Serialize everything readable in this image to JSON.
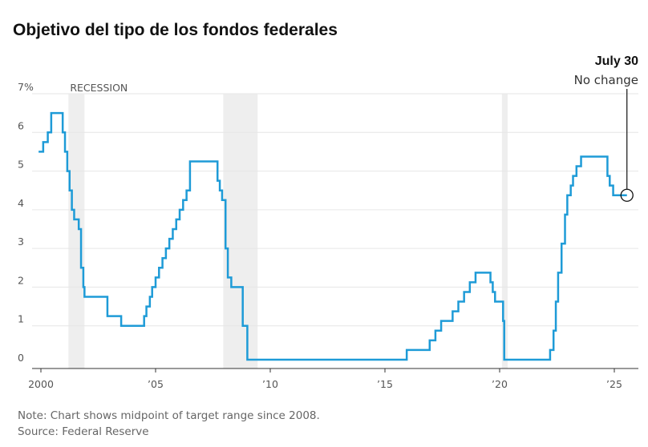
{
  "chart_data": {
    "type": "line",
    "title": "Objetivo del tipo de los fondos federales",
    "xlabel": "",
    "ylabel": "",
    "ylim": [
      0,
      7
    ],
    "xlim": [
      1999.9,
      2025.8
    ],
    "y_ticks": [
      {
        "value": 0,
        "label": "0"
      },
      {
        "value": 1,
        "label": "1"
      },
      {
        "value": 2,
        "label": "2"
      },
      {
        "value": 3,
        "label": "3"
      },
      {
        "value": 4,
        "label": "4"
      },
      {
        "value": 5,
        "label": "5"
      },
      {
        "value": 6,
        "label": "6"
      },
      {
        "value": 7,
        "label": "7%"
      }
    ],
    "x_ticks": [
      {
        "value": 2000,
        "label": "2000"
      },
      {
        "value": 2005,
        "label": "’05"
      },
      {
        "value": 2010,
        "label": "’10"
      },
      {
        "value": 2015,
        "label": "’15"
      },
      {
        "value": 2020,
        "label": "’20"
      },
      {
        "value": 2025,
        "label": "’25"
      }
    ],
    "grid": true,
    "colors": {
      "line": "#1e9bd7",
      "recession": "#eeeeee",
      "grid": "#e6e6e6",
      "axis": "#333333"
    },
    "recessions": [
      {
        "start": 2001.2,
        "end": 2001.9
      },
      {
        "start": 2007.95,
        "end": 2009.45
      },
      {
        "start": 2020.1,
        "end": 2020.35
      }
    ],
    "recession_label": "RECESSION",
    "series": [
      {
        "step": true,
        "x": [
          1999.9,
          2000.1,
          2000.3,
          2000.45,
          2000.95,
          2001.05,
          2001.15,
          2001.25,
          2001.35,
          2001.45,
          2001.65,
          2001.75,
          2001.85,
          2001.9,
          2002.9,
          2003.5,
          2004.5,
          2004.6,
          2004.75,
          2004.85,
          2005.0,
          2005.15,
          2005.3,
          2005.45,
          2005.6,
          2005.75,
          2005.9,
          2006.05,
          2006.2,
          2006.35,
          2006.5,
          2007.7,
          2007.8,
          2007.9,
          2008.05,
          2008.15,
          2008.3,
          2008.8,
          2009.0,
          2015.95,
          2016.95,
          2017.2,
          2017.45,
          2017.95,
          2018.2,
          2018.45,
          2018.7,
          2018.95,
          2019.6,
          2019.7,
          2019.8,
          2020.15,
          2020.2,
          2022.2,
          2022.35,
          2022.45,
          2022.55,
          2022.7,
          2022.85,
          2022.95,
          2023.1,
          2023.2,
          2023.35,
          2023.55,
          2024.7,
          2024.8,
          2024.95,
          2025.55
        ],
        "values": [
          5.5,
          5.75,
          6.0,
          6.5,
          6.0,
          5.5,
          5.0,
          4.5,
          4.0,
          3.75,
          3.5,
          2.5,
          2.0,
          1.75,
          1.25,
          1.0,
          1.25,
          1.5,
          1.75,
          2.0,
          2.25,
          2.5,
          2.75,
          3.0,
          3.25,
          3.5,
          3.75,
          4.0,
          4.25,
          4.5,
          5.25,
          4.75,
          4.5,
          4.25,
          3.0,
          2.25,
          2.0,
          1.0,
          0.125,
          0.375,
          0.625,
          0.875,
          1.125,
          1.375,
          1.625,
          1.875,
          2.125,
          2.375,
          2.125,
          1.875,
          1.625,
          1.125,
          0.125,
          0.375,
          0.875,
          1.625,
          2.375,
          3.125,
          3.875,
          4.375,
          4.625,
          4.875,
          5.125,
          5.375,
          4.875,
          4.625,
          4.375,
          4.375
        ]
      }
    ],
    "annotation": {
      "date": "July 30",
      "text": "No change",
      "x": 2025.55,
      "y": 4.375
    }
  },
  "footer": {
    "note": "Note: Chart shows midpoint of target range since 2008.",
    "source": "Source: Federal Reserve"
  }
}
